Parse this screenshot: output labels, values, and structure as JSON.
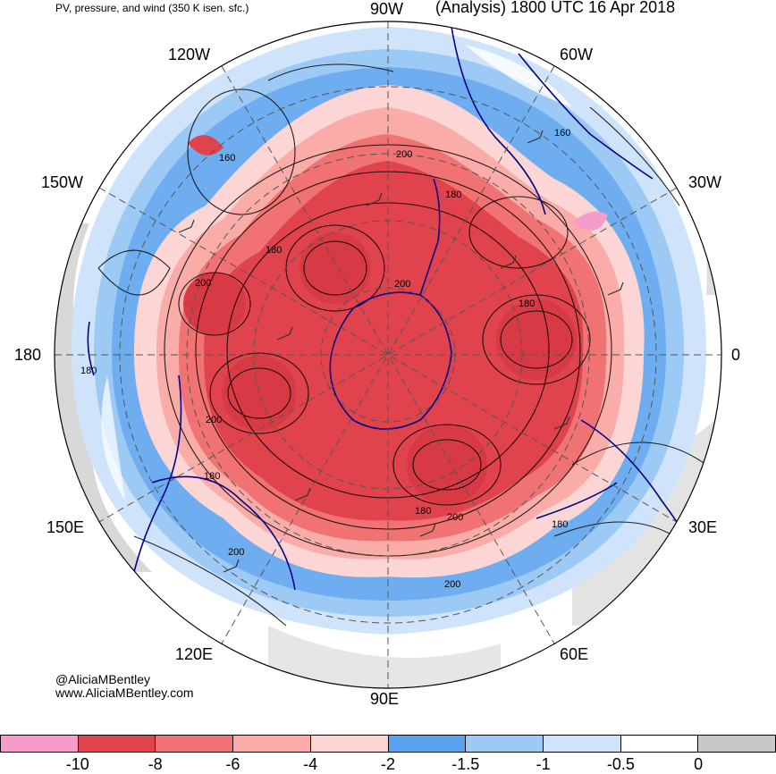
{
  "header": {
    "left_title": "PV, pressure, and wind (350 K isen. sfc.)",
    "right_title": "(Analysis) 1800 UTC 16 Apr 2018"
  },
  "longitude_labels": {
    "deg90w": "90W",
    "deg60w": "60W",
    "deg120w": "120W",
    "deg30w": "30W",
    "deg150w": "150W",
    "deg180": "180",
    "deg0": "0",
    "deg150e": "150E",
    "deg30e": "30E",
    "deg120e": "120E",
    "deg60e": "60E",
    "deg90e": "90E"
  },
  "contour_labels": {
    "c1": "160",
    "c2": "200",
    "c3": "160",
    "c4": "180",
    "c5": "180",
    "c6": "200",
    "c7": "200",
    "c8": "180",
    "c9": "180",
    "c10": "200",
    "c11": "180",
    "c12": "180",
    "c13": "200",
    "c14": "180",
    "c15": "200",
    "c16": "200"
  },
  "credits": {
    "handle": "@AliciaMBentley",
    "site": "www.AliciaMBentley.com"
  },
  "colorbar": {
    "colors": [
      "#f59dc8",
      "#e0434c",
      "#f07272",
      "#f9aca8",
      "#fcd6d4",
      "#5aa3ee",
      "#9dc9f5",
      "#cfe4fb",
      "#ffffff",
      "#c8c8c8"
    ],
    "tick_labels": [
      "-10",
      "-8",
      "-6",
      "-4",
      "-2",
      "-1.5",
      "-1",
      "-0.5",
      "0"
    ]
  },
  "map_colors": {
    "strong_negative": "#e0434c",
    "moderate_negative": "#f07272",
    "weak_negative": "#f9aca8",
    "faint_negative": "#fcd6d4",
    "blue_strong": "#5aa3ee",
    "blue_mid": "#9dc9f5",
    "blue_light": "#cfe4fb",
    "gray": "#c8c8c8",
    "coastline": "#00008b"
  }
}
